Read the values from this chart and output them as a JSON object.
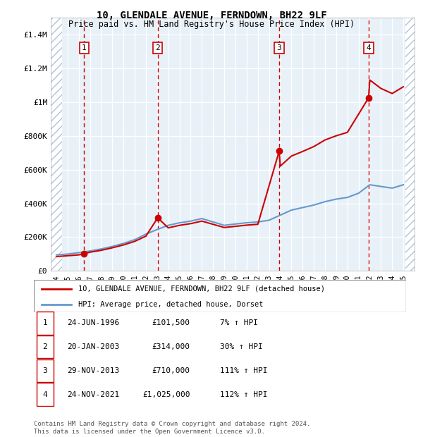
{
  "title": "10, GLENDALE AVENUE, FERNDOWN, BH22 9LF",
  "subtitle": "Price paid vs. HM Land Registry's House Price Index (HPI)",
  "legend_line1": "10, GLENDALE AVENUE, FERNDOWN, BH22 9LF (detached house)",
  "legend_line2": "HPI: Average price, detached house, Dorset",
  "footer": "Contains HM Land Registry data © Crown copyright and database right 2024.\nThis data is licensed under the Open Government Licence v3.0.",
  "xlim": [
    1993.5,
    2026.0
  ],
  "ylim": [
    0,
    1500000
  ],
  "yticks": [
    0,
    200000,
    400000,
    600000,
    800000,
    1000000,
    1200000,
    1400000
  ],
  "ytick_labels": [
    "£0",
    "£200K",
    "£400K",
    "£600K",
    "£800K",
    "£1M",
    "£1.2M",
    "£1.4M"
  ],
  "xticks": [
    1994,
    1995,
    1996,
    1997,
    1998,
    1999,
    2000,
    2001,
    2002,
    2003,
    2004,
    2005,
    2006,
    2007,
    2008,
    2009,
    2010,
    2011,
    2012,
    2013,
    2014,
    2015,
    2016,
    2017,
    2018,
    2019,
    2020,
    2021,
    2022,
    2023,
    2024,
    2025
  ],
  "sale_dates": [
    1996.48,
    2003.05,
    2013.91,
    2021.9
  ],
  "sale_prices": [
    101500,
    314000,
    710000,
    1025000
  ],
  "sale_labels": [
    "1",
    "2",
    "3",
    "4"
  ],
  "hpi_x": [
    1994,
    1995,
    1996,
    1997,
    1998,
    1999,
    2000,
    2001,
    2002,
    2003,
    2004,
    2005,
    2006,
    2007,
    2008,
    2009,
    2010,
    2011,
    2012,
    2013,
    2014,
    2015,
    2016,
    2017,
    2018,
    2019,
    2020,
    2021,
    2022,
    2023,
    2024,
    2025
  ],
  "hpi_y": [
    95000,
    100000,
    108000,
    118000,
    130000,
    145000,
    163000,
    185000,
    218000,
    245000,
    270000,
    285000,
    295000,
    310000,
    290000,
    270000,
    278000,
    285000,
    290000,
    300000,
    330000,
    360000,
    375000,
    390000,
    410000,
    425000,
    435000,
    460000,
    510000,
    500000,
    490000,
    510000
  ],
  "red_line_x": [
    1994,
    1995,
    1996,
    1996.48,
    1997,
    1998,
    1999,
    2000,
    2001,
    2002,
    2003.05,
    2004,
    2005,
    2006,
    2007,
    2008,
    2009,
    2010,
    2011,
    2012,
    2013.91,
    2014,
    2015,
    2016,
    2017,
    2018,
    2019,
    2020,
    2021.9,
    2022,
    2023,
    2024,
    2025
  ],
  "red_line_y": [
    85000,
    90000,
    95000,
    101500,
    111000,
    122000,
    137000,
    154000,
    175000,
    206000,
    314000,
    255000,
    270000,
    280000,
    295000,
    276000,
    257000,
    264000,
    271000,
    276000,
    710000,
    620000,
    680000,
    707000,
    736000,
    775000,
    800000,
    820000,
    1025000,
    1130000,
    1080000,
    1050000,
    1090000
  ],
  "transaction_table": [
    {
      "num": "1",
      "date": "24-JUN-1996",
      "price": "£101,500",
      "hpi": "7% ↑ HPI"
    },
    {
      "num": "2",
      "date": "20-JAN-2003",
      "price": "£314,000",
      "hpi": "30% ↑ HPI"
    },
    {
      "num": "3",
      "date": "29-NOV-2013",
      "price": "£710,000",
      "hpi": "111% ↑ HPI"
    },
    {
      "num": "4",
      "date": "24-NOV-2021",
      "price": "£1,025,000",
      "hpi": "112% ↑ HPI"
    }
  ],
  "hatch_color": "#c8d8e8",
  "plot_bg_color": "#e8f0f8",
  "grid_color": "#ffffff",
  "red_color": "#cc0000",
  "blue_color": "#6699cc"
}
